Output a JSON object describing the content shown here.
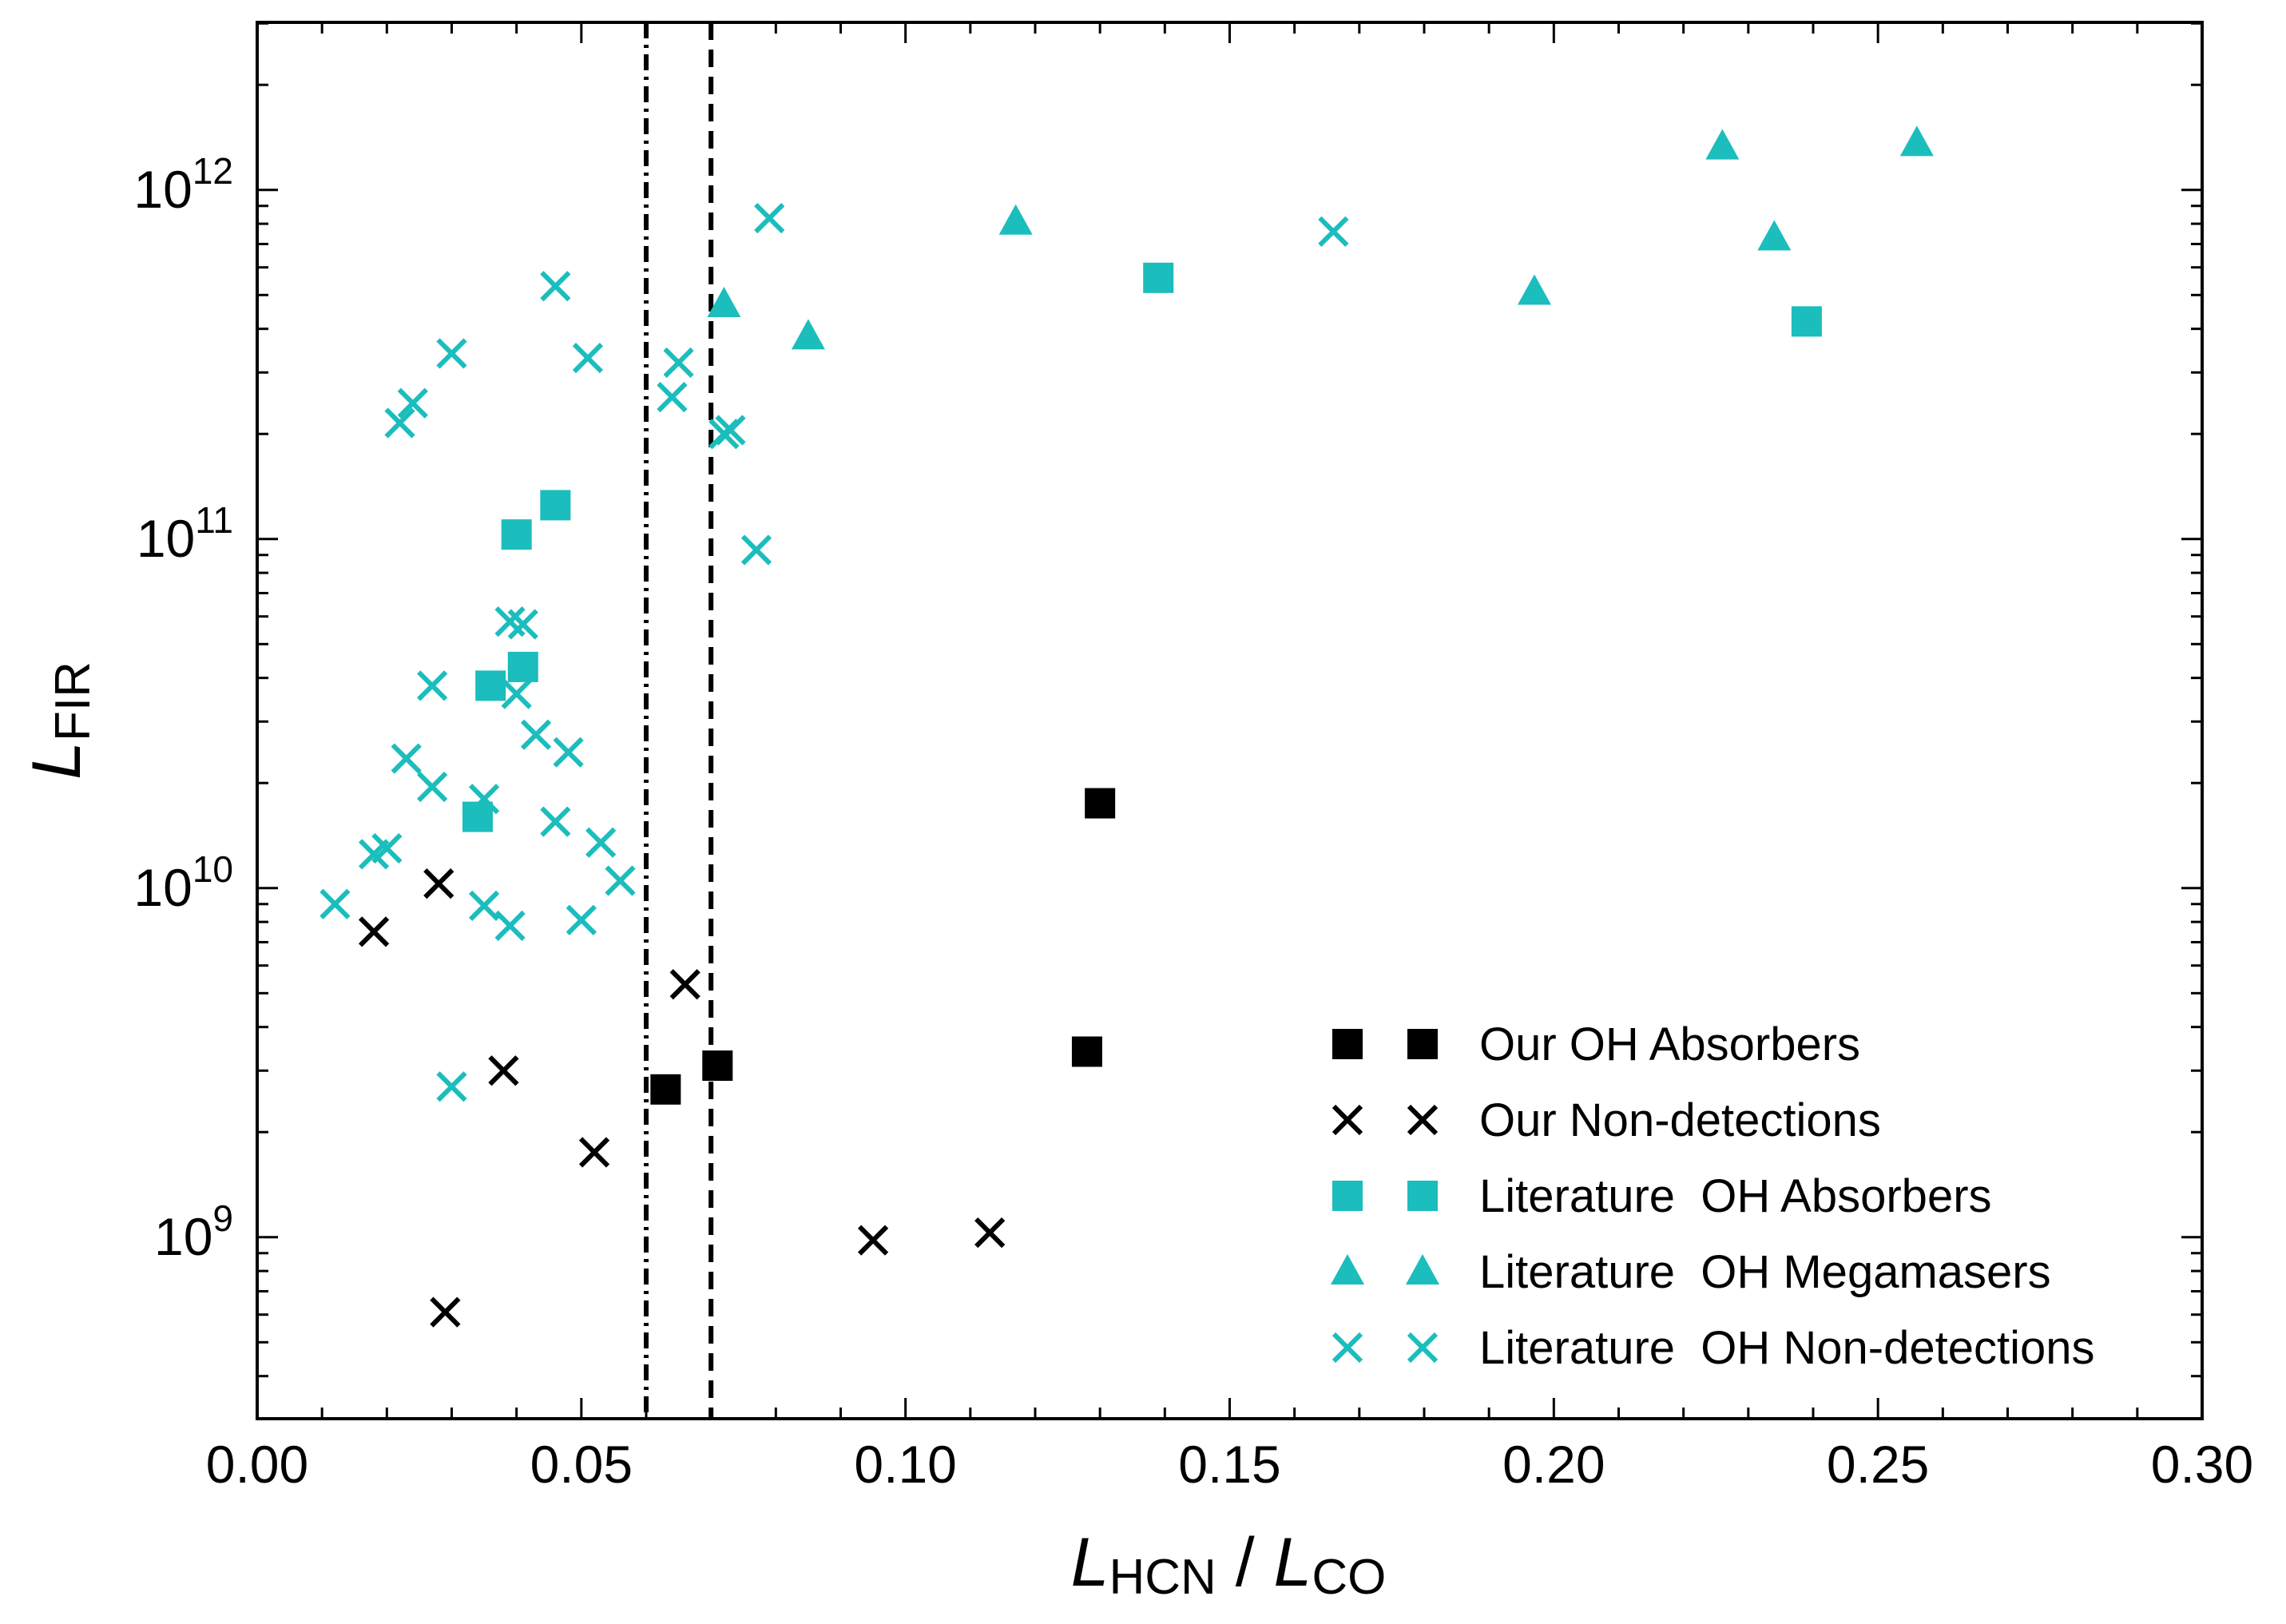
{
  "chart_data": {
    "type": "scatter",
    "xlabel": {
      "main": "L",
      "sub": "HCN",
      "sep": " / ",
      "main2": "L",
      "sub2": "CO"
    },
    "ylabel": {
      "main": "L",
      "sub": "FIR"
    },
    "xlim": [
      0.0,
      0.3
    ],
    "ylim_log10": [
      8.48,
      12.48
    ],
    "yscale": "log",
    "x_ticks": [
      {
        "value": 0.0,
        "label": "0.00"
      },
      {
        "value": 0.05,
        "label": "0.05"
      },
      {
        "value": 0.1,
        "label": "0.10"
      },
      {
        "value": 0.15,
        "label": "0.15"
      },
      {
        "value": 0.2,
        "label": "0.20"
      },
      {
        "value": 0.25,
        "label": "0.25"
      },
      {
        "value": 0.3,
        "label": "0.30"
      }
    ],
    "y_ticks": [
      {
        "log10": 9,
        "base": "10",
        "exp": "9"
      },
      {
        "log10": 10,
        "base": "10",
        "exp": "10"
      },
      {
        "log10": 11,
        "base": "10",
        "exp": "11"
      },
      {
        "log10": 12,
        "base": "10",
        "exp": "12"
      }
    ],
    "vlines": [
      {
        "x": 0.06,
        "style": "dashdot"
      },
      {
        "x": 0.07,
        "style": "dashed"
      }
    ],
    "colors": {
      "cyan": "#1bbdbd",
      "black": "#000000"
    },
    "legend_position": "lower-right",
    "series": [
      {
        "name": "Our OH Absorbers",
        "marker": "square",
        "color": "#000000",
        "points": [
          [
            0.063,
            2650000000.0
          ],
          [
            0.071,
            3100000000.0
          ],
          [
            0.128,
            3400000000.0
          ],
          [
            0.13,
            17500000000.0
          ]
        ]
      },
      {
        "name": "Our Non-detections",
        "marker": "x",
        "color": "#000000",
        "points": [
          [
            0.018,
            7500000000.0
          ],
          [
            0.028,
            10300000000.0
          ],
          [
            0.029,
            610000000.0
          ],
          [
            0.038,
            3000000000.0
          ],
          [
            0.052,
            1750000000.0
          ],
          [
            0.066,
            5300000000.0
          ],
          [
            0.095,
            980000000.0
          ],
          [
            0.113,
            1030000000.0
          ]
        ]
      },
      {
        "name": "Literature  OH Absorbers",
        "marker": "square",
        "color": "#1bbdbd",
        "points": [
          [
            0.034,
            16000000000.0
          ],
          [
            0.036,
            38000000000.0
          ],
          [
            0.04,
            103000000000.0
          ],
          [
            0.041,
            43000000000.0
          ],
          [
            0.046,
            125000000000.0
          ],
          [
            0.139,
            560000000000.0
          ],
          [
            0.239,
            420000000000.0
          ]
        ]
      },
      {
        "name": "Literature  OH Megamasers",
        "marker": "triangle",
        "color": "#1bbdbd",
        "points": [
          [
            0.072,
            470000000000.0
          ],
          [
            0.085,
            380000000000.0
          ],
          [
            0.117,
            810000000000.0
          ],
          [
            0.197,
            510000000000.0
          ],
          [
            0.226,
            1330000000000.0
          ],
          [
            0.234,
            730000000000.0
          ],
          [
            0.256,
            1360000000000.0
          ]
        ]
      },
      {
        "name": "Literature  OH Non-detections",
        "marker": "x",
        "color": "#1bbdbd",
        "points": [
          [
            0.012,
            9000000000.0
          ],
          [
            0.018,
            12500000000.0
          ],
          [
            0.02,
            13000000000.0
          ],
          [
            0.022,
            215000000000.0
          ],
          [
            0.024,
            245000000000.0
          ],
          [
            0.023,
            23500000000.0
          ],
          [
            0.027,
            19500000000.0
          ],
          [
            0.027,
            38000000000.0
          ],
          [
            0.03,
            2700000000.0
          ],
          [
            0.03,
            340000000000.0
          ],
          [
            0.035,
            8900000000.0
          ],
          [
            0.035,
            18000000000.0
          ],
          [
            0.039,
            7800000000.0
          ],
          [
            0.039,
            58000000000.0
          ],
          [
            0.041,
            57000000000.0
          ],
          [
            0.04,
            36000000000.0
          ],
          [
            0.043,
            27500000000.0
          ],
          [
            0.046,
            530000000000.0
          ],
          [
            0.046,
            15500000000.0
          ],
          [
            0.048,
            24500000000.0
          ],
          [
            0.05,
            8100000000.0
          ],
          [
            0.051,
            330000000000.0
          ],
          [
            0.053,
            13500000000.0
          ],
          [
            0.056,
            10500000000.0
          ],
          [
            0.064,
            255000000000.0
          ],
          [
            0.065,
            320000000000.0
          ],
          [
            0.072,
            200000000000.0
          ],
          [
            0.073,
            205000000000.0
          ],
          [
            0.077,
            93000000000.0
          ],
          [
            0.079,
            830000000000.0
          ],
          [
            0.166,
            760000000000.0
          ]
        ]
      }
    ]
  }
}
